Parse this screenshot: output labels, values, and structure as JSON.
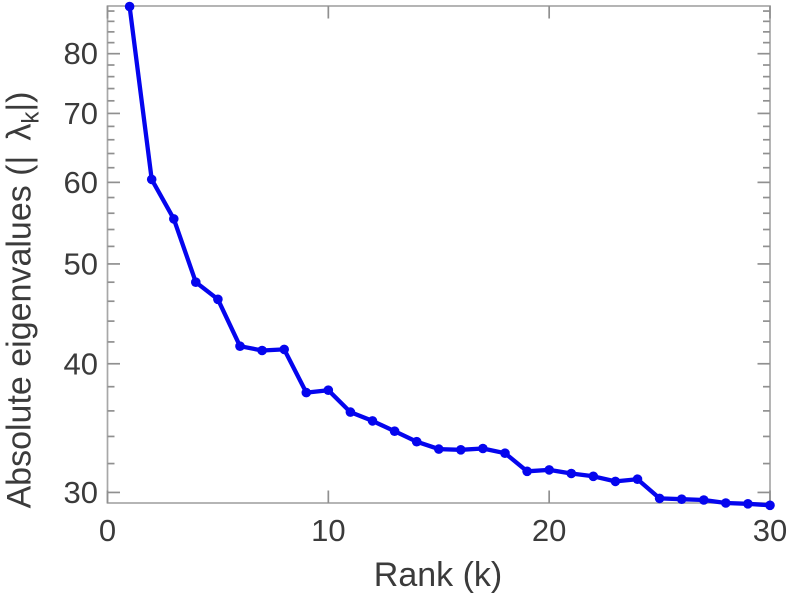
{
  "chart_data": {
    "type": "line",
    "title": "",
    "xlabel": "Rank (k)",
    "ylabel_parts": {
      "prefix": "Absolute eigenvalues (|",
      "lambda": "λ",
      "sub": "k",
      "suffix": "|)"
    },
    "x": [
      1,
      2,
      3,
      4,
      5,
      6,
      7,
      8,
      9,
      10,
      11,
      12,
      13,
      14,
      15,
      16,
      17,
      18,
      19,
      20,
      21,
      22,
      23,
      24,
      25,
      26,
      27,
      28,
      29,
      30
    ],
    "y": [
      88.9,
      60.4,
      55.3,
      48.0,
      46.2,
      41.6,
      41.2,
      41.3,
      37.5,
      37.7,
      35.9,
      35.2,
      34.4,
      33.6,
      33.05,
      33.0,
      33.1,
      32.75,
      31.45,
      31.55,
      31.3,
      31.1,
      30.75,
      30.9,
      29.6,
      29.55,
      29.5,
      29.3,
      29.25,
      29.15
    ],
    "xlim": [
      0,
      30
    ],
    "ylim": [
      29.3,
      89
    ],
    "yscale": "log",
    "xscale": "linear",
    "xticks": [
      0,
      10,
      20,
      30
    ],
    "yticks": [
      30,
      40,
      50,
      60,
      70,
      80
    ],
    "y_minor_tick_step": 2,
    "grid": false,
    "legend": null,
    "marker": "circle",
    "line_color": "#0505ee",
    "marker_color": "#0505ee",
    "box_color": "#a8a8a8",
    "tick_color": "#909090",
    "text_color": "#3b3b3b"
  }
}
